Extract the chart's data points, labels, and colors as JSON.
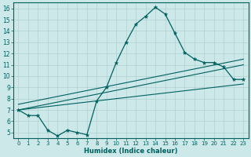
{
  "title": "",
  "xlabel": "Humidex (Indice chaleur)",
  "bg_color": "#cce8e8",
  "grid_color": "#b0d0d0",
  "line_color": "#006060",
  "xlim": [
    -0.5,
    23.5
  ],
  "ylim": [
    4.5,
    16.5
  ],
  "curve_x": [
    0,
    1,
    2,
    3,
    4,
    5,
    6,
    7,
    8,
    9,
    10,
    11,
    12,
    13,
    14,
    15,
    16,
    17,
    18,
    19,
    20,
    21,
    22,
    23
  ],
  "curve_y": [
    7.0,
    6.5,
    6.5,
    5.2,
    4.7,
    5.2,
    5.0,
    4.8,
    7.8,
    9.0,
    11.2,
    13.0,
    14.6,
    15.3,
    16.1,
    15.5,
    13.8,
    12.1,
    11.5,
    11.2,
    11.2,
    10.8,
    9.7,
    9.7
  ],
  "line1_x": [
    0,
    23
  ],
  "line1_y": [
    7.0,
    9.3
  ],
  "line2_x": [
    0,
    23
  ],
  "line2_y": [
    7.5,
    11.5
  ],
  "line3_x": [
    0,
    23
  ],
  "line3_y": [
    7.0,
    11.0
  ],
  "xticks": [
    0,
    1,
    2,
    3,
    4,
    5,
    6,
    7,
    8,
    9,
    10,
    11,
    12,
    13,
    14,
    15,
    16,
    17,
    18,
    19,
    20,
    21,
    22,
    23
  ],
  "yticks": [
    5,
    6,
    7,
    8,
    9,
    10,
    11,
    12,
    13,
    14,
    15,
    16
  ]
}
